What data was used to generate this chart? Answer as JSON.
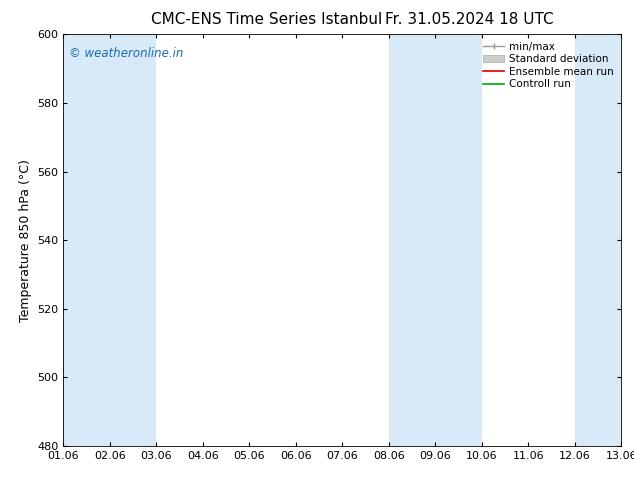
{
  "title_left": "CMC-ENS Time Series Istanbul",
  "title_right": "Fr. 31.05.2024 18 UTC",
  "ylabel": "Temperature 850 hPa (°C)",
  "ylim": [
    480,
    600
  ],
  "yticks": [
    480,
    500,
    520,
    540,
    560,
    580,
    600
  ],
  "xlim": [
    0,
    12
  ],
  "xtick_labels": [
    "01.06",
    "02.06",
    "03.06",
    "04.06",
    "05.06",
    "06.06",
    "07.06",
    "08.06",
    "09.06",
    "10.06",
    "11.06",
    "12.06",
    "13.06"
  ],
  "watermark": "© weatheronline.in",
  "watermark_color": "#1a6ab5",
  "bg_color": "#ffffff",
  "plot_bg_color": "#ffffff",
  "band_color": "#d8eaf7",
  "band_positions": [
    1,
    2,
    7,
    8,
    11
  ],
  "band_widths": [
    2,
    1,
    2,
    1,
    1
  ],
  "legend_labels": [
    "min/max",
    "Standard deviation",
    "Ensemble mean run",
    "Controll run"
  ],
  "title_fontsize": 11,
  "tick_fontsize": 8,
  "ylabel_fontsize": 9
}
